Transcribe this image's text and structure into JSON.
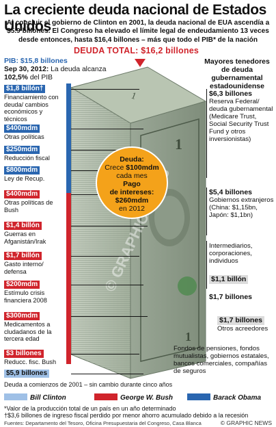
{
  "title": "La creciente deuda nacional de Estados Unidos",
  "intro": "Al concluir el gobierno de Clinton en 2001, la deuda nacional de EUA ascendía a $5.9 billones. El Congreso ha elevado el límite legal de endeudamiento 13 veces desde entonces, hasta $16,4 billones – más que todo el PIB* de la nación",
  "total_label": "Deuda total:",
  "total_value": "$16,2 billones",
  "pib_label": "PIB:",
  "pib_value": "$15,8 billones",
  "sep_date": "Sep 30, 2012:",
  "sep_text1": "La deuda alcanza",
  "sep_pct": "102,5%",
  "sep_text2": "del PIB",
  "left_items": [
    {
      "tag": "$1,8 billón†",
      "color": "blue",
      "text": "Financiamiento con deuda/ cambios económicos y técnicos"
    },
    {
      "tag": "$400mdm",
      "color": "blue",
      "text": "Otras políticas"
    },
    {
      "tag": "$250mdm",
      "color": "blue",
      "text": "Reducción fiscal"
    },
    {
      "tag": "$800mdm",
      "color": "blue",
      "text": "Ley de Recup."
    },
    {
      "tag": "$400mdm",
      "color": "red",
      "text": "Otras políticas de Bush"
    },
    {
      "tag": "$1,4 billón",
      "color": "red",
      "text": "Guerras en Afganistán/Irak"
    },
    {
      "tag": "$1,7 billón",
      "color": "red",
      "text": "Gasto interno/ defensa"
    },
    {
      "tag": "$200mdm",
      "color": "red",
      "text": "Estímulo crisis financiera 2008"
    },
    {
      "tag": "$300mdm",
      "color": "red",
      "text": "Medicamentos a cludadanos de la tercera edad"
    },
    {
      "tag": "$3 billones",
      "color": "red",
      "text": "Reducc. fisc. Bush"
    },
    {
      "tag": "$5,9 billones",
      "color": "light",
      "text": ""
    }
  ],
  "start_note": "Deuda a comienzos de 2001 – sin cambio durante cinco años",
  "circle": {
    "l1": "Deuda:",
    "l2": "Crece",
    "l3": "$100mdm",
    "l4": "cada mes",
    "l5": "Pago",
    "l6": "de intereses:",
    "l7": "$260mdm",
    "l8": "en 2012"
  },
  "right_head": "Mayores tenedores de deuda gubernamental estadounidense",
  "right_items": [
    {
      "amt": "$6,3 billones",
      "text": "Reserva Federal/ deuda gubernamental (Medicare Trust, Social Security Trust Fund y otros inversionistas)"
    },
    {
      "amt": "$5,4 billones",
      "text": "Gobiernos extranjeros (China: $1,15bn, Japón: $1,1bn)"
    },
    {
      "amt": "",
      "text": "Intermediarios, corporaciones, individuos"
    },
    {
      "amt": "$1,1 billón",
      "text": ""
    },
    {
      "amt": "$1,7 billones",
      "text": ""
    },
    {
      "amt": "$1,7 billones",
      "text": "Otros acreedores"
    },
    {
      "amt": "",
      "text": "Fondos de pensiones, fondos mutualistas, gobiernos estatales, bancos comerciales, compañías de seguros"
    }
  ],
  "legend": [
    {
      "name": "Bill Clinton",
      "color": "#9fc0e6"
    },
    {
      "name": "George W. Bush",
      "color": "#d0242c"
    },
    {
      "name": "Barack Obama",
      "color": "#2a66b0"
    }
  ],
  "footnote1": "*Valor de la producción total de un país en un año determinado",
  "footnote2": "†$3,6 billones de ingreso fiscal perdido por menor ahorro acumulado debido a la recesión",
  "source": "Fuentes: Departamento del Tesoro, Oficina Presupuestaria del Congreso, Casa Blanca",
  "copyright": "© GRAPHIC NEWS",
  "watermark": "© GRAPHIC NEWS",
  "colors": {
    "blue": "#2a66b0",
    "red": "#d0242c",
    "light": "#9fc0e6",
    "orange": "#f4a21a",
    "bill_green": "#8fa88a"
  }
}
